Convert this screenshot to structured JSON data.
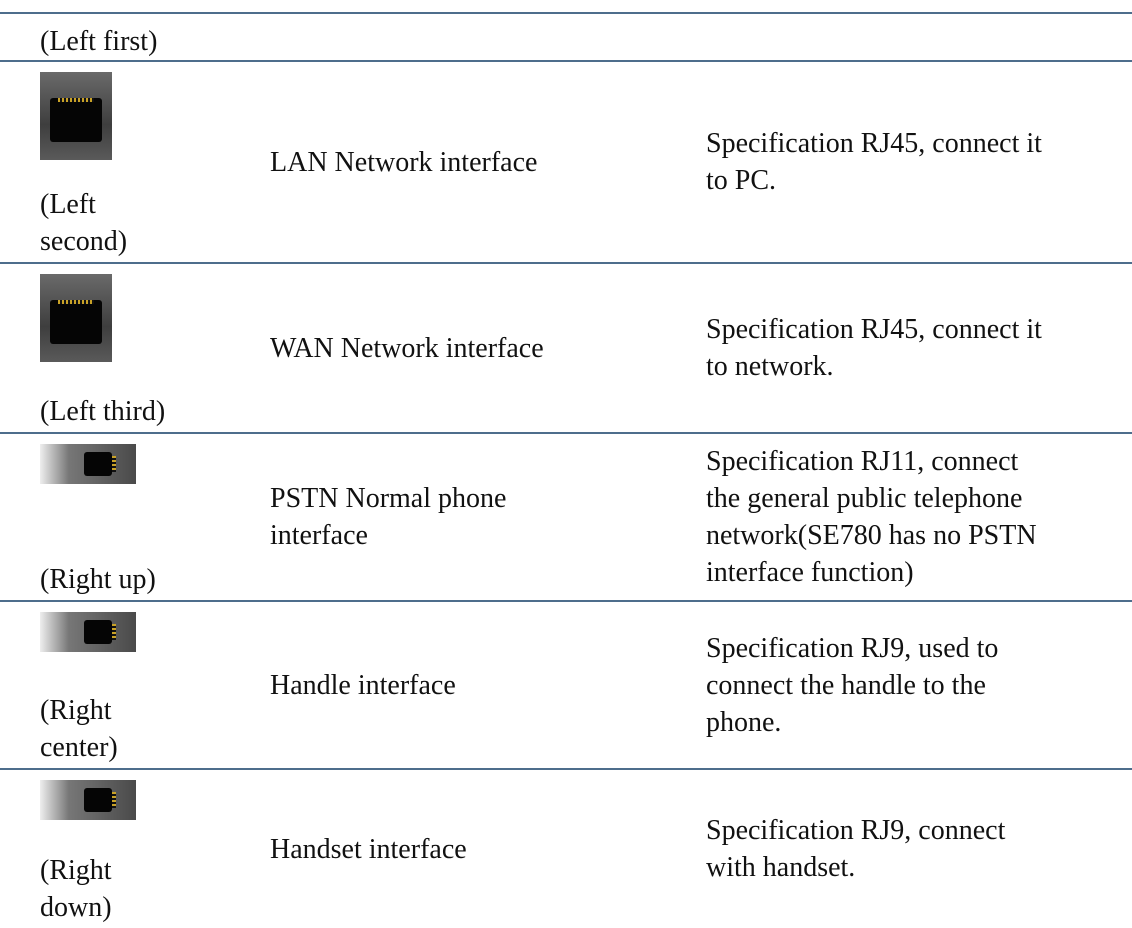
{
  "table": {
    "rows": [
      {
        "position": [
          "(Left first)"
        ]
      },
      {
        "position": [
          "(Left",
          "second)"
        ],
        "name": [
          "LAN Network interface"
        ],
        "description": [
          "Specification RJ45, connect it",
          "to PC."
        ]
      },
      {
        "position": [
          "(Left third)"
        ],
        "name": [
          "WAN Network interface"
        ],
        "description": [
          "Specification RJ45, connect it",
          "to network."
        ]
      },
      {
        "position": [
          "(Right up)"
        ],
        "name": [
          "PSTN Normal phone",
          "interface"
        ],
        "description": [
          "Specification RJ11, connect",
          "the general public telephone",
          "network(SE780 has no PSTN",
          "interface function)"
        ]
      },
      {
        "position": [
          "(Right",
          "center)"
        ],
        "name": [
          "Handle interface"
        ],
        "description": [
          "Specification RJ9, used to",
          "connect the handle to the",
          "phone."
        ]
      },
      {
        "position": [
          "(Right",
          "down)"
        ],
        "name": [
          "Handset interface"
        ],
        "description": [
          "Specification RJ9, connect",
          "with handset."
        ]
      }
    ]
  }
}
